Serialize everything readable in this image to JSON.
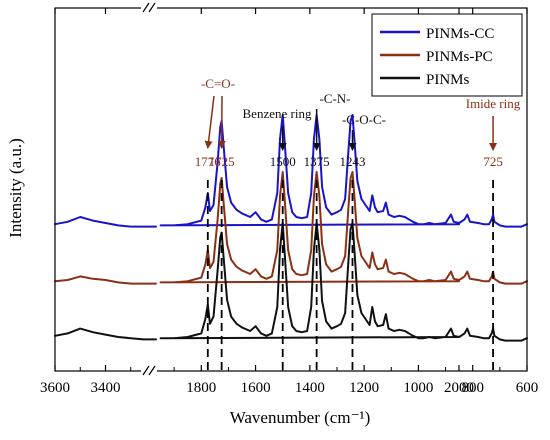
{
  "chart_data": {
    "type": "line",
    "title": "",
    "xlabel": "Wavenumber (cm⁻¹)",
    "ylabel": "Intensity (a.u.)",
    "x_axis": {
      "reversed": true,
      "broken": true,
      "segments": [
        [
          3600,
          3200
        ],
        [
          2000,
          600
        ]
      ],
      "ticks": [
        "3600",
        "3400",
        "2000",
        "1800",
        "1600",
        "1400",
        "1200",
        "1000",
        "800",
        "600"
      ]
    },
    "grid": false,
    "legend": {
      "position": "top-right",
      "entries": [
        "PINMs-CC",
        "PINMs-PC",
        "PINMs"
      ]
    },
    "series": [
      {
        "name": "PINMs-CC",
        "color": "#1a14c8",
        "offset": 2.0,
        "points": [
          [
            3600,
            0.04
          ],
          [
            3550,
            0.06
          ],
          [
            3500,
            0.1
          ],
          [
            3450,
            0.07
          ],
          [
            3400,
            0.05
          ],
          [
            3350,
            0.03
          ],
          [
            3300,
            0.02
          ],
          [
            3250,
            0.02
          ],
          [
            3200,
            0.02
          ],
          [
            2000,
            0.04
          ],
          [
            1950,
            0.03
          ],
          [
            1900,
            0.03
          ],
          [
            1850,
            0.04
          ],
          [
            1800,
            0.07
          ],
          [
            1785,
            0.18
          ],
          [
            1776,
            0.3
          ],
          [
            1768,
            0.15
          ],
          [
            1755,
            0.2
          ],
          [
            1740,
            0.55
          ],
          [
            1730,
            0.85
          ],
          [
            1725,
            0.9
          ],
          [
            1718,
            0.7
          ],
          [
            1705,
            0.35
          ],
          [
            1690,
            0.22
          ],
          [
            1670,
            0.16
          ],
          [
            1650,
            0.13
          ],
          [
            1620,
            0.1
          ],
          [
            1600,
            0.14
          ],
          [
            1580,
            0.08
          ],
          [
            1560,
            0.06
          ],
          [
            1540,
            0.08
          ],
          [
            1520,
            0.3
          ],
          [
            1510,
            0.75
          ],
          [
            1500,
            0.95
          ],
          [
            1492,
            0.7
          ],
          [
            1480,
            0.3
          ],
          [
            1465,
            0.14
          ],
          [
            1450,
            0.1
          ],
          [
            1430,
            0.09
          ],
          [
            1410,
            0.1
          ],
          [
            1395,
            0.3
          ],
          [
            1385,
            0.75
          ],
          [
            1375,
            0.95
          ],
          [
            1365,
            0.75
          ],
          [
            1355,
            0.35
          ],
          [
            1340,
            0.18
          ],
          [
            1320,
            0.12
          ],
          [
            1300,
            0.14
          ],
          [
            1285,
            0.16
          ],
          [
            1270,
            0.25
          ],
          [
            1258,
            0.65
          ],
          [
            1250,
            0.9
          ],
          [
            1243,
            0.95
          ],
          [
            1236,
            0.75
          ],
          [
            1225,
            0.4
          ],
          [
            1210,
            0.25
          ],
          [
            1195,
            0.2
          ],
          [
            1180,
            0.15
          ],
          [
            1170,
            0.28
          ],
          [
            1160,
            0.18
          ],
          [
            1150,
            0.14
          ],
          [
            1130,
            0.15
          ],
          [
            1120,
            0.22
          ],
          [
            1110,
            0.12
          ],
          [
            1090,
            0.1
          ],
          [
            1070,
            0.11
          ],
          [
            1050,
            0.1
          ],
          [
            1020,
            0.06
          ],
          [
            1000,
            0.04
          ],
          [
            980,
            0.04
          ],
          [
            960,
            0.05
          ],
          [
            940,
            0.04
          ],
          [
            900,
            0.05
          ],
          [
            880,
            0.12
          ],
          [
            870,
            0.06
          ],
          [
            850,
            0.05
          ],
          [
            830,
            0.08
          ],
          [
            820,
            0.12
          ],
          [
            810,
            0.06
          ],
          [
            780,
            0.05
          ],
          [
            760,
            0.04
          ],
          [
            740,
            0.04
          ],
          [
            730,
            0.08
          ],
          [
            725,
            0.12
          ],
          [
            720,
            0.06
          ],
          [
            700,
            0.03
          ],
          [
            680,
            0.02
          ],
          [
            650,
            0.02
          ],
          [
            620,
            0.02
          ],
          [
            600,
            0.04
          ]
        ]
      },
      {
        "name": "PINMs-PC",
        "color": "#8a3014",
        "offset": 1.0,
        "points": [
          [
            3600,
            0.04
          ],
          [
            3550,
            0.05
          ],
          [
            3500,
            0.08
          ],
          [
            3450,
            0.06
          ],
          [
            3400,
            0.05
          ],
          [
            3350,
            0.03
          ],
          [
            3300,
            0.02
          ],
          [
            3250,
            0.02
          ],
          [
            3200,
            0.02
          ],
          [
            2000,
            0.04
          ],
          [
            1950,
            0.03
          ],
          [
            1900,
            0.03
          ],
          [
            1850,
            0.04
          ],
          [
            1800,
            0.07
          ],
          [
            1785,
            0.18
          ],
          [
            1776,
            0.3
          ],
          [
            1768,
            0.15
          ],
          [
            1755,
            0.2
          ],
          [
            1740,
            0.55
          ],
          [
            1730,
            0.85
          ],
          [
            1725,
            0.9
          ],
          [
            1718,
            0.7
          ],
          [
            1705,
            0.35
          ],
          [
            1690,
            0.22
          ],
          [
            1670,
            0.16
          ],
          [
            1650,
            0.13
          ],
          [
            1620,
            0.1
          ],
          [
            1600,
            0.14
          ],
          [
            1580,
            0.08
          ],
          [
            1560,
            0.06
          ],
          [
            1540,
            0.08
          ],
          [
            1520,
            0.3
          ],
          [
            1510,
            0.75
          ],
          [
            1500,
            0.95
          ],
          [
            1492,
            0.7
          ],
          [
            1480,
            0.3
          ],
          [
            1465,
            0.14
          ],
          [
            1450,
            0.1
          ],
          [
            1430,
            0.09
          ],
          [
            1410,
            0.1
          ],
          [
            1395,
            0.3
          ],
          [
            1385,
            0.75
          ],
          [
            1375,
            0.95
          ],
          [
            1365,
            0.75
          ],
          [
            1355,
            0.35
          ],
          [
            1340,
            0.18
          ],
          [
            1320,
            0.12
          ],
          [
            1300,
            0.14
          ],
          [
            1285,
            0.16
          ],
          [
            1270,
            0.25
          ],
          [
            1258,
            0.65
          ],
          [
            1250,
            0.9
          ],
          [
            1243,
            0.95
          ],
          [
            1236,
            0.75
          ],
          [
            1225,
            0.4
          ],
          [
            1210,
            0.25
          ],
          [
            1195,
            0.2
          ],
          [
            1180,
            0.15
          ],
          [
            1170,
            0.28
          ],
          [
            1160,
            0.18
          ],
          [
            1150,
            0.14
          ],
          [
            1130,
            0.15
          ],
          [
            1120,
            0.22
          ],
          [
            1110,
            0.12
          ],
          [
            1090,
            0.1
          ],
          [
            1070,
            0.11
          ],
          [
            1050,
            0.1
          ],
          [
            1020,
            0.06
          ],
          [
            1000,
            0.04
          ],
          [
            980,
            0.04
          ],
          [
            960,
            0.05
          ],
          [
            940,
            0.04
          ],
          [
            900,
            0.05
          ],
          [
            880,
            0.12
          ],
          [
            870,
            0.06
          ],
          [
            850,
            0.05
          ],
          [
            830,
            0.08
          ],
          [
            820,
            0.12
          ],
          [
            810,
            0.06
          ],
          [
            780,
            0.05
          ],
          [
            760,
            0.04
          ],
          [
            740,
            0.04
          ],
          [
            730,
            0.08
          ],
          [
            725,
            0.12
          ],
          [
            720,
            0.06
          ],
          [
            700,
            0.03
          ],
          [
            680,
            0.02
          ],
          [
            650,
            0.02
          ],
          [
            620,
            0.02
          ],
          [
            600,
            0.04
          ]
        ]
      },
      {
        "name": "PINMs",
        "color": "#111111",
        "offset": 0.0,
        "points": [
          [
            3600,
            0.06
          ],
          [
            3550,
            0.08
          ],
          [
            3500,
            0.12
          ],
          [
            3450,
            0.09
          ],
          [
            3400,
            0.07
          ],
          [
            3350,
            0.05
          ],
          [
            3300,
            0.04
          ],
          [
            3250,
            0.03
          ],
          [
            3200,
            0.03
          ],
          [
            2000,
            0.05
          ],
          [
            1950,
            0.04
          ],
          [
            1900,
            0.04
          ],
          [
            1850,
            0.05
          ],
          [
            1800,
            0.08
          ],
          [
            1785,
            0.2
          ],
          [
            1776,
            0.32
          ],
          [
            1768,
            0.16
          ],
          [
            1755,
            0.22
          ],
          [
            1740,
            0.6
          ],
          [
            1730,
            0.88
          ],
          [
            1725,
            0.92
          ],
          [
            1718,
            0.72
          ],
          [
            1705,
            0.36
          ],
          [
            1690,
            0.22
          ],
          [
            1670,
            0.16
          ],
          [
            1650,
            0.13
          ],
          [
            1620,
            0.1
          ],
          [
            1600,
            0.14
          ],
          [
            1580,
            0.08
          ],
          [
            1560,
            0.06
          ],
          [
            1540,
            0.08
          ],
          [
            1520,
            0.3
          ],
          [
            1510,
            0.78
          ],
          [
            1500,
            1.0
          ],
          [
            1492,
            0.72
          ],
          [
            1480,
            0.3
          ],
          [
            1465,
            0.14
          ],
          [
            1450,
            0.1
          ],
          [
            1430,
            0.09
          ],
          [
            1410,
            0.1
          ],
          [
            1395,
            0.3
          ],
          [
            1385,
            0.78
          ],
          [
            1375,
            1.0
          ],
          [
            1365,
            0.78
          ],
          [
            1355,
            0.35
          ],
          [
            1340,
            0.18
          ],
          [
            1320,
            0.12
          ],
          [
            1300,
            0.14
          ],
          [
            1285,
            0.16
          ],
          [
            1270,
            0.25
          ],
          [
            1258,
            0.68
          ],
          [
            1250,
            0.95
          ],
          [
            1243,
            1.0
          ],
          [
            1236,
            0.78
          ],
          [
            1225,
            0.4
          ],
          [
            1210,
            0.25
          ],
          [
            1195,
            0.2
          ],
          [
            1180,
            0.15
          ],
          [
            1170,
            0.3
          ],
          [
            1160,
            0.18
          ],
          [
            1150,
            0.14
          ],
          [
            1130,
            0.15
          ],
          [
            1120,
            0.24
          ],
          [
            1110,
            0.12
          ],
          [
            1090,
            0.1
          ],
          [
            1070,
            0.11
          ],
          [
            1050,
            0.1
          ],
          [
            1020,
            0.06
          ],
          [
            1000,
            0.04
          ],
          [
            980,
            0.04
          ],
          [
            960,
            0.05
          ],
          [
            940,
            0.04
          ],
          [
            900,
            0.05
          ],
          [
            880,
            0.12
          ],
          [
            870,
            0.06
          ],
          [
            850,
            0.05
          ],
          [
            830,
            0.08
          ],
          [
            820,
            0.12
          ],
          [
            810,
            0.06
          ],
          [
            780,
            0.05
          ],
          [
            760,
            0.04
          ],
          [
            740,
            0.04
          ],
          [
            730,
            0.08
          ],
          [
            725,
            0.12
          ],
          [
            720,
            0.06
          ],
          [
            700,
            0.03
          ],
          [
            680,
            0.02
          ],
          [
            650,
            0.02
          ],
          [
            620,
            0.02
          ],
          [
            600,
            0.04
          ]
        ]
      }
    ],
    "reference_lines": [
      {
        "x": 1776,
        "label": "1776",
        "color": "#8a3014"
      },
      {
        "x": 1725,
        "label": "1725",
        "color": "#8a3014"
      },
      {
        "x": 1500,
        "label": "1500",
        "color": "#111111"
      },
      {
        "x": 1375,
        "label": "1375",
        "color": "#111111"
      },
      {
        "x": 1243,
        "label": "1243",
        "color": "#111111"
      },
      {
        "x": 725,
        "label": "725",
        "color": "#8a3014"
      }
    ],
    "annotations": [
      {
        "text": "-C=O-",
        "color": "#8a3014",
        "targets": [
          1776,
          1725
        ]
      },
      {
        "text": "Benzene ring",
        "color": "#111111",
        "targets": [
          1500
        ]
      },
      {
        "text": "-C-N-",
        "color": "#111111",
        "targets": [
          1375
        ]
      },
      {
        "text": "-C-O-C-",
        "color": "#111111",
        "targets": [
          1243
        ]
      },
      {
        "text": "Imide ring",
        "color": "#8a3014",
        "targets": [
          725
        ]
      }
    ]
  }
}
